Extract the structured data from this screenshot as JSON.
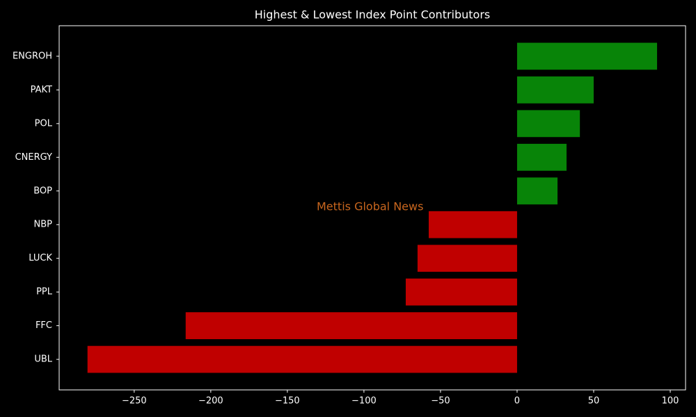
{
  "chart_data": {
    "type": "barh",
    "title": "Highest & Lowest Index Point Contributors",
    "annotation": "Mettis Global News",
    "annotation_color": "#c8661e",
    "categories": [
      "ENGROH",
      "PAKT",
      "POL",
      "CNERGY",
      "BOP",
      "NBP",
      "LUCK",
      "PPL",
      "FFC",
      "UBL"
    ],
    "values": [
      91.4,
      50,
      41,
      32.3,
      26.4,
      -57.7,
      -65,
      -72.7,
      -216.4,
      -280.5
    ],
    "colors": [
      "#088408",
      "#088408",
      "#088408",
      "#088408",
      "#088408",
      "#c00000",
      "#c00000",
      "#c00000",
      "#c00000",
      "#c00000"
    ],
    "xlim": [
      -299,
      110
    ],
    "xticks": [
      {
        "value": -250,
        "label": "−250"
      },
      {
        "value": -200,
        "label": "−200"
      },
      {
        "value": -150,
        "label": "−150"
      },
      {
        "value": -100,
        "label": "−100"
      },
      {
        "value": -50,
        "label": "−50"
      },
      0,
      50,
      100
    ]
  }
}
